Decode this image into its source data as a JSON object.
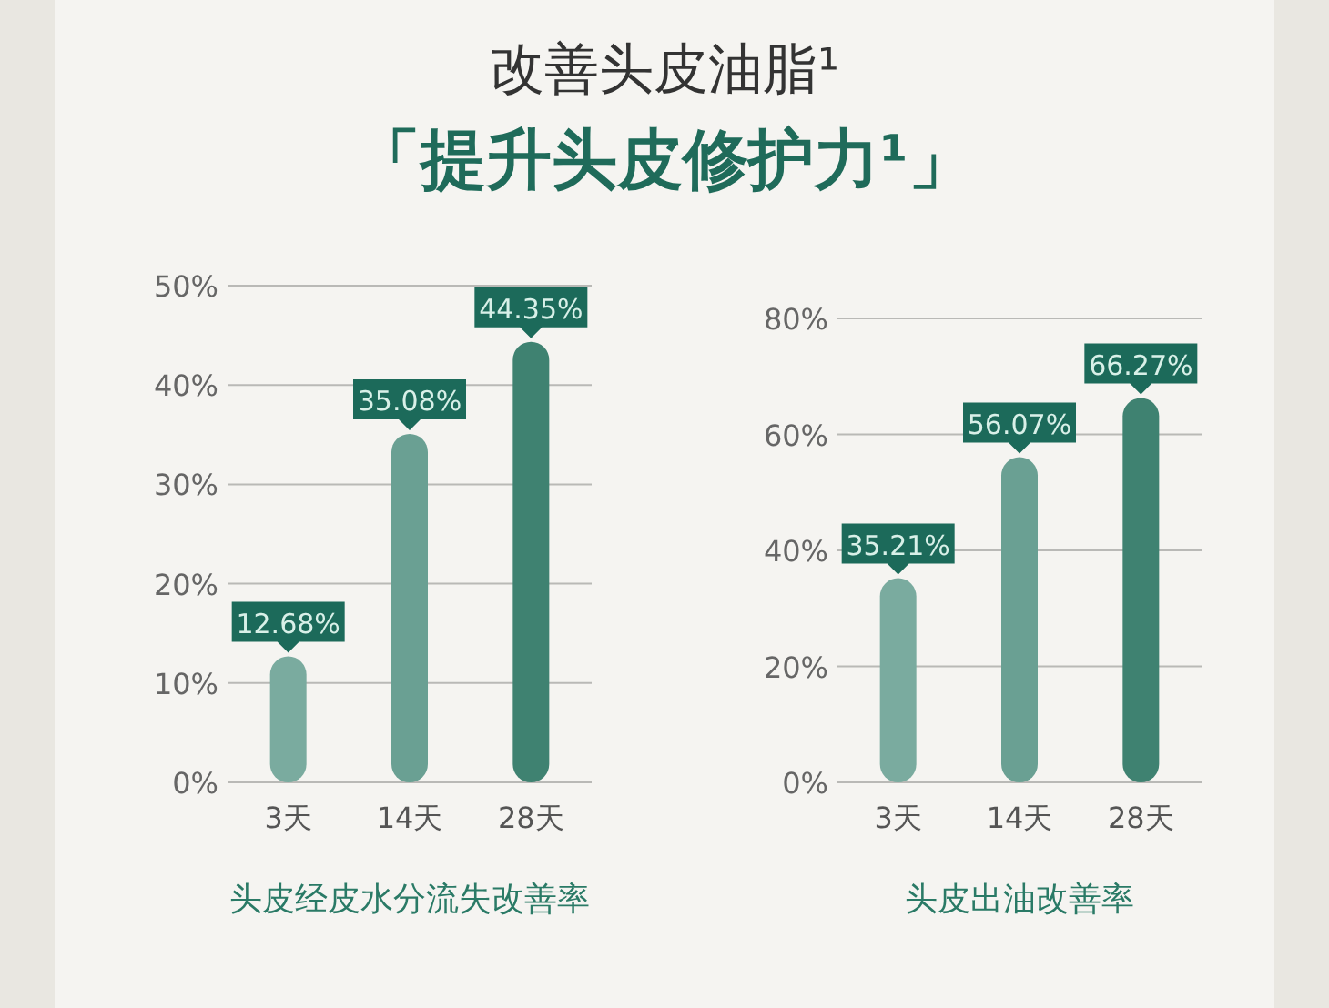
{
  "chart_data": [
    {
      "type": "bar",
      "title": "改善头皮油脂¹",
      "subtitle": "「提升头皮修护力¹」",
      "xlabel": "头皮经皮水分流失改善率",
      "categories": [
        "3天",
        "14天",
        "28天"
      ],
      "values": [
        12.68,
        35.08,
        44.35
      ],
      "colors": [
        "#7aab9f",
        "#6aa093",
        "#3f8271"
      ],
      "value_labels": [
        "12.68%",
        "35.08%",
        "44.35%"
      ],
      "ylim": [
        0,
        50
      ],
      "yticks": [
        {
          "value": 0,
          "label": "0%"
        },
        {
          "value": 10,
          "label": "10%"
        },
        {
          "value": 20,
          "label": "20%"
        },
        {
          "value": 30,
          "label": "30%"
        },
        {
          "value": 40,
          "label": "40%"
        },
        {
          "value": 50,
          "label": "50%"
        }
      ],
      "grid": "y"
    },
    {
      "type": "bar",
      "xlabel": "头皮出油改善率",
      "categories": [
        "3天",
        "14天",
        "28天"
      ],
      "values": [
        35.21,
        56.07,
        66.27
      ],
      "colors": [
        "#7aab9f",
        "#6aa093",
        "#3f8271"
      ],
      "value_labels": [
        "35.21%",
        "56.07%",
        "66.27%"
      ],
      "ylim": [
        0,
        80
      ],
      "yticks": [
        {
          "value": 0,
          "label": "0%"
        },
        {
          "value": 20,
          "label": "20%"
        },
        {
          "value": 40,
          "label": "40%"
        },
        {
          "value": 60,
          "label": "60%"
        },
        {
          "value": 80,
          "label": "80%"
        }
      ],
      "grid": "y"
    }
  ]
}
